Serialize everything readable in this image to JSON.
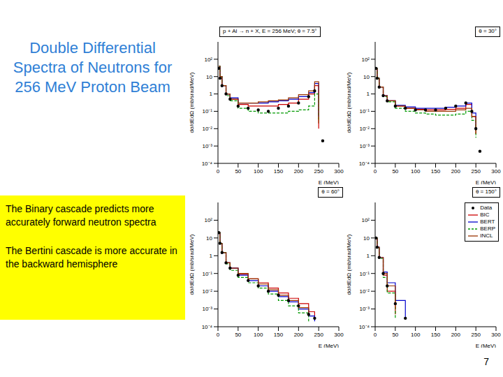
{
  "title": "Double Differential Spectra of Neutrons for 256 MeV Proton Beam",
  "notes": [
    "The Binary cascade predicts more accurately forward neutron spectra",
    "The Bertini cascade is more accurate in the backward hemisphere"
  ],
  "page_number": 7,
  "chart_data": [
    {
      "type": "line",
      "title": "p + Al → n + X, E = 256 MeV;",
      "subtitle": "θ = 7.5°",
      "x_label": "E (MeV)",
      "y_label": "dσ/dEdΩ (mb/srad/MeV)",
      "log": "y",
      "xlim": [
        0,
        300
      ],
      "xticks": [
        0,
        50,
        100,
        150,
        200,
        250,
        300
      ],
      "ylim": [
        0.0001,
        1000
      ],
      "yticks": [
        {
          "value": 0.0001,
          "label": "10⁻⁴"
        },
        {
          "value": 0.001,
          "label": "10⁻³"
        },
        {
          "value": 0.01,
          "label": "10⁻²"
        },
        {
          "value": 0.1,
          "label": "10⁻¹"
        },
        1,
        10,
        {
          "value": 100,
          "label": "10²"
        }
      ],
      "x": [
        2,
        5,
        10,
        20,
        30,
        50,
        75,
        100,
        125,
        150,
        175,
        200,
        225,
        240,
        250,
        260
      ],
      "series": [
        {
          "name": "Data",
          "type": "scatter",
          "marker": "circle",
          "line_style": "none",
          "color": "#000000",
          "values": [
            30,
            8,
            3,
            1,
            0.5,
            0.2,
            0.15,
            0.12,
            0.1,
            0.15,
            0.2,
            0.3,
            0.7,
            1.5,
            null,
            0.002
          ]
        },
        {
          "name": "BIC",
          "type": "step",
          "line_style": "solid",
          "color": "#cc0000",
          "values": [
            40,
            10,
            3,
            1,
            0.5,
            0.25,
            0.2,
            0.2,
            0.2,
            0.25,
            0.3,
            0.5,
            1,
            3,
            0.01,
            null
          ]
        },
        {
          "name": "BERT",
          "type": "step",
          "line_style": "solid",
          "color": "#0000cc",
          "values": [
            40,
            10,
            3,
            1,
            0.6,
            0.3,
            0.3,
            0.3,
            0.35,
            0.4,
            0.5,
            0.7,
            1.2,
            4,
            0.05,
            null
          ]
        },
        {
          "name": "BERP",
          "type": "step",
          "line_style": "dashed",
          "color": "#009900",
          "values": [
            40,
            10,
            3,
            0.8,
            0.4,
            0.15,
            0.1,
            0.08,
            0.08,
            0.08,
            0.1,
            0.12,
            0.2,
            1,
            0.03,
            null
          ]
        },
        {
          "name": "INCL",
          "type": "step",
          "line_style": "solid",
          "color": "#993300",
          "values": [
            40,
            10,
            3,
            1,
            0.5,
            0.3,
            0.3,
            0.35,
            0.4,
            0.45,
            0.6,
            0.9,
            1.5,
            5,
            0.02,
            null
          ]
        }
      ]
    },
    {
      "type": "line",
      "subtitle": "θ = 30°",
      "x_label": "E (MeV)",
      "y_label": "dσ/dEdΩ (mb/srad/MeV)",
      "log": "y",
      "xlim": [
        0,
        300
      ],
      "xticks": [
        0,
        50,
        100,
        150,
        200,
        250,
        300
      ],
      "ylim": [
        0.0001,
        1000
      ],
      "yticks": [
        {
          "value": 0.0001,
          "label": "10⁻⁴"
        },
        {
          "value": 0.001,
          "label": "10⁻³"
        },
        {
          "value": 0.01,
          "label": "10⁻²"
        },
        {
          "value": 0.1,
          "label": "10⁻¹"
        },
        1,
        10,
        {
          "value": 100,
          "label": "10²"
        }
      ],
      "x": [
        2,
        5,
        10,
        20,
        30,
        50,
        75,
        100,
        125,
        150,
        175,
        200,
        225,
        240,
        250,
        260
      ],
      "series": [
        {
          "name": "Data",
          "type": "scatter",
          "marker": "circle",
          "line_style": "none",
          "color": "#000000",
          "values": [
            30,
            8,
            2.5,
            0.8,
            0.4,
            0.2,
            0.15,
            0.12,
            0.12,
            0.12,
            0.15,
            0.2,
            0.3,
            0.1,
            0.01,
            0.0005
          ]
        },
        {
          "name": "BIC",
          "type": "step",
          "line_style": "solid",
          "color": "#cc0000",
          "values": [
            30,
            8,
            2.5,
            0.8,
            0.4,
            0.2,
            0.15,
            0.13,
            0.12,
            0.12,
            0.13,
            0.15,
            0.25,
            0.05,
            0.005,
            null
          ]
        },
        {
          "name": "BERT",
          "type": "step",
          "line_style": "solid",
          "color": "#0000cc",
          "values": [
            30,
            8,
            2.5,
            0.8,
            0.4,
            0.22,
            0.18,
            0.15,
            0.15,
            0.15,
            0.17,
            0.2,
            0.3,
            0.08,
            0.01,
            null
          ]
        },
        {
          "name": "BERP",
          "type": "step",
          "line_style": "dashed",
          "color": "#009900",
          "values": [
            30,
            8,
            2.5,
            0.7,
            0.35,
            0.15,
            0.1,
            0.08,
            0.07,
            0.06,
            0.06,
            0.07,
            0.1,
            0.03,
            0.003,
            null
          ]
        },
        {
          "name": "INCL",
          "type": "step",
          "line_style": "solid",
          "color": "#993300",
          "values": [
            30,
            8,
            2.5,
            0.8,
            0.4,
            0.2,
            0.15,
            0.12,
            0.1,
            0.1,
            0.1,
            0.12,
            0.15,
            0.05,
            0.005,
            null
          ]
        }
      ]
    },
    {
      "type": "line",
      "subtitle": "θ = 60°",
      "x_label": "E (MeV)",
      "y_label": "dσ/dEdΩ (mb/srad/MeV)",
      "log": "y",
      "xlim": [
        0,
        300
      ],
      "xticks": [
        0,
        50,
        100,
        150,
        200,
        250,
        300
      ],
      "ylim": [
        0.0001,
        1000
      ],
      "yticks": [
        {
          "value": 0.0001,
          "label": "10⁻⁴"
        },
        {
          "value": 0.001,
          "label": "10⁻³"
        },
        {
          "value": 0.01,
          "label": "10⁻²"
        },
        {
          "value": 0.1,
          "label": "10⁻¹"
        },
        1,
        10,
        {
          "value": 100,
          "label": "10²"
        }
      ],
      "x": [
        2,
        5,
        10,
        20,
        30,
        50,
        75,
        100,
        125,
        150,
        175,
        200,
        225,
        240,
        250,
        260
      ],
      "series": [
        {
          "name": "Data",
          "type": "scatter",
          "marker": "circle",
          "line_style": "none",
          "color": "#000000",
          "values": [
            20,
            5,
            1.5,
            0.4,
            0.2,
            0.08,
            0.04,
            0.02,
            0.01,
            0.006,
            0.003,
            0.0015,
            0.0005,
            0.0003,
            null,
            null
          ]
        },
        {
          "name": "BIC",
          "type": "step",
          "line_style": "solid",
          "color": "#cc0000",
          "values": [
            20,
            5,
            1.5,
            0.4,
            0.2,
            0.09,
            0.05,
            0.03,
            0.015,
            0.008,
            0.004,
            0.002,
            0.0007,
            0.0003,
            null,
            null
          ]
        },
        {
          "name": "BERT",
          "type": "step",
          "line_style": "solid",
          "color": "#0000cc",
          "values": [
            20,
            5,
            1.5,
            0.4,
            0.2,
            0.08,
            0.04,
            0.02,
            0.01,
            0.005,
            0.0025,
            0.001,
            0.0004,
            0.0002,
            null,
            null
          ]
        },
        {
          "name": "BERP",
          "type": "step",
          "line_style": "dashed",
          "color": "#009900",
          "values": [
            20,
            5,
            1.5,
            0.35,
            0.15,
            0.06,
            0.03,
            0.015,
            0.007,
            0.003,
            0.0015,
            0.0006,
            0.0002,
            null,
            null,
            null
          ]
        },
        {
          "name": "INCL",
          "type": "step",
          "line_style": "solid",
          "color": "#993300",
          "values": [
            20,
            5,
            1.5,
            0.4,
            0.2,
            0.1,
            0.05,
            0.025,
            0.012,
            0.006,
            0.003,
            0.0012,
            0.0004,
            null,
            null,
            null
          ]
        }
      ]
    },
    {
      "type": "line",
      "subtitle": "θ = 150°",
      "x_label": "E (MeV)",
      "y_label": "dσ/dEdΩ (mb/srad/MeV)",
      "log": "y",
      "legend": "upper right",
      "xlim": [
        0,
        300
      ],
      "xticks": [
        0,
        50,
        100,
        150,
        200,
        250,
        300
      ],
      "ylim": [
        0.0001,
        1000
      ],
      "yticks": [
        {
          "value": 0.0001,
          "label": "10⁻⁴"
        },
        {
          "value": 0.001,
          "label": "10⁻³"
        },
        {
          "value": 0.01,
          "label": "10⁻²"
        },
        {
          "value": 0.1,
          "label": "10⁻¹"
        },
        1,
        10,
        {
          "value": 100,
          "label": "10²"
        }
      ],
      "x": [
        2,
        5,
        10,
        20,
        30,
        50,
        75,
        100,
        125,
        150,
        175,
        200,
        225,
        240,
        250,
        260
      ],
      "series": [
        {
          "name": "Data",
          "type": "scatter",
          "marker": "circle",
          "line_style": "none",
          "color": "#000000",
          "values": [
            10,
            3,
            0.8,
            0.1,
            0.02,
            0.002,
            0.0003,
            null,
            null,
            null,
            null,
            null,
            null,
            null,
            null,
            null
          ]
        },
        {
          "name": "BIC",
          "type": "step",
          "line_style": "solid",
          "color": "#cc0000",
          "values": [
            10,
            3,
            0.8,
            0.08,
            0.01,
            0.0005,
            null,
            null,
            null,
            null,
            null,
            null,
            null,
            null,
            null,
            null
          ]
        },
        {
          "name": "BERT",
          "type": "step",
          "line_style": "solid",
          "color": "#0000cc",
          "values": [
            10,
            3,
            0.8,
            0.12,
            0.03,
            0.003,
            0.0003,
            null,
            null,
            null,
            null,
            null,
            null,
            null,
            null,
            null
          ]
        },
        {
          "name": "BERP",
          "type": "step",
          "line_style": "dashed",
          "color": "#009900",
          "values": [
            10,
            3,
            0.7,
            0.06,
            0.008,
            0.0003,
            null,
            null,
            null,
            null,
            null,
            null,
            null,
            null,
            null,
            null
          ]
        },
        {
          "name": "INCL",
          "type": "step",
          "line_style": "solid",
          "color": "#993300",
          "values": [
            10,
            3,
            0.8,
            0.1,
            0.02,
            0.001,
            null,
            null,
            null,
            null,
            null,
            null,
            null,
            null,
            null,
            null
          ]
        }
      ]
    }
  ]
}
